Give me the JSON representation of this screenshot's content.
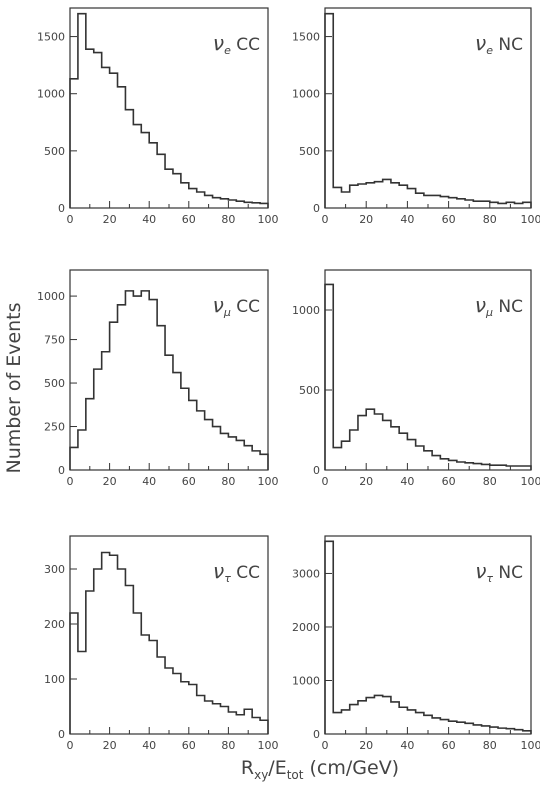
{
  "figure": {
    "ylabel": "Number of Events",
    "xlabel": "R_xy/E_tot (cm/GeV)",
    "xlabel_main": "R",
    "xlabel_sub1": "xy",
    "xlabel_mid": "/E",
    "xlabel_sub2": "tot",
    "xlabel_tail": " (cm/GeV)",
    "line_color": "#333333"
  },
  "chart_data": [
    {
      "type": "histogram",
      "label_greek": "ν",
      "label_flavor": "e",
      "label_kind": "CC",
      "bin_edges_start": 0,
      "bin_width": 4,
      "values": [
        1130,
        1700,
        1390,
        1360,
        1230,
        1180,
        1060,
        860,
        730,
        660,
        570,
        470,
        340,
        300,
        220,
        170,
        140,
        110,
        90,
        80,
        70,
        60,
        50,
        45,
        40
      ],
      "xlim": [
        0,
        100
      ],
      "xticks": [
        0,
        20,
        40,
        60,
        80,
        100
      ],
      "ylim": [
        0,
        1750
      ],
      "yticks": [
        0,
        500,
        1000,
        1500
      ]
    },
    {
      "type": "histogram",
      "label_greek": "ν",
      "label_flavor": "e",
      "label_kind": "NC",
      "bin_edges_start": 0,
      "bin_width": 4,
      "values": [
        1700,
        180,
        140,
        200,
        210,
        220,
        230,
        250,
        220,
        200,
        170,
        130,
        110,
        110,
        100,
        90,
        80,
        70,
        60,
        60,
        50,
        40,
        50,
        40,
        50
      ],
      "xlim": [
        0,
        100
      ],
      "xticks": [
        0,
        20,
        40,
        60,
        80,
        100
      ],
      "ylim": [
        0,
        1750
      ],
      "yticks": [
        0,
        500,
        1000,
        1500
      ]
    },
    {
      "type": "histogram",
      "label_greek": "ν",
      "label_flavor": "μ",
      "label_kind": "CC",
      "bin_edges_start": 0,
      "bin_width": 4,
      "values": [
        130,
        230,
        410,
        580,
        680,
        850,
        950,
        1030,
        1000,
        1030,
        980,
        830,
        660,
        560,
        470,
        400,
        340,
        290,
        250,
        210,
        190,
        170,
        140,
        110,
        90
      ],
      "xlim": [
        0,
        100
      ],
      "xticks": [
        0,
        20,
        40,
        60,
        80,
        100
      ],
      "ylim": [
        0,
        1150
      ],
      "yticks": [
        0,
        250,
        500,
        750,
        1000
      ]
    },
    {
      "type": "histogram",
      "label_greek": "ν",
      "label_flavor": "μ",
      "label_kind": "NC",
      "bin_edges_start": 0,
      "bin_width": 4,
      "values": [
        1160,
        140,
        180,
        250,
        340,
        380,
        350,
        310,
        270,
        230,
        190,
        150,
        120,
        90,
        70,
        60,
        50,
        45,
        40,
        35,
        30,
        30,
        25,
        25,
        25
      ],
      "xlim": [
        0,
        100
      ],
      "xticks": [
        0,
        20,
        40,
        60,
        80,
        100
      ],
      "ylim": [
        0,
        1250
      ],
      "yticks": [
        0,
        500,
        1000
      ]
    },
    {
      "type": "histogram",
      "label_greek": "ν",
      "label_flavor": "τ",
      "label_kind": "CC",
      "bin_edges_start": 0,
      "bin_width": 4,
      "values": [
        220,
        150,
        260,
        300,
        330,
        325,
        300,
        270,
        220,
        180,
        170,
        140,
        120,
        110,
        95,
        90,
        70,
        60,
        55,
        50,
        40,
        35,
        45,
        30,
        25
      ],
      "xlim": [
        0,
        100
      ],
      "xticks": [
        0,
        20,
        40,
        60,
        80,
        100
      ],
      "ylim": [
        0,
        360
      ],
      "yticks": [
        0,
        100,
        200,
        300
      ]
    },
    {
      "type": "histogram",
      "label_greek": "ν",
      "label_flavor": "τ",
      "label_kind": "NC",
      "bin_edges_start": 0,
      "bin_width": 4,
      "values": [
        3600,
        400,
        450,
        550,
        620,
        680,
        720,
        700,
        600,
        500,
        450,
        400,
        350,
        300,
        270,
        240,
        220,
        200,
        170,
        150,
        130,
        110,
        100,
        80,
        60
      ],
      "xlim": [
        0,
        100
      ],
      "xticks": [
        0,
        20,
        40,
        60,
        80,
        100
      ],
      "ylim": [
        0,
        3700
      ],
      "yticks": [
        0,
        1000,
        2000,
        3000
      ]
    }
  ]
}
